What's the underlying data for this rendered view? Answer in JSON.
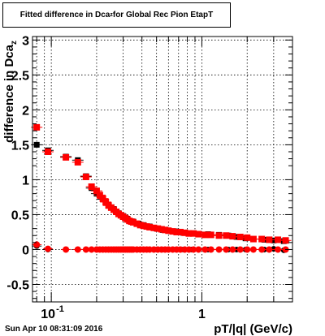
{
  "title": {
    "pre": "Fitted difference in Dca",
    "sub": "z",
    "post": " for Global Rec Pion EtapT"
  },
  "footer": {
    "date": "Sun Apr 10 08:31:09 2016"
  },
  "colors": {
    "series_red": "#ff0000",
    "series_black": "#000000",
    "grid": "#000000"
  },
  "chart_data": {
    "type": "scatter",
    "xlabel": "pT/|q| (GeV/c)",
    "ylabel": "difference in Dca",
    "ylabel_sub": "z",
    "xscale": "log",
    "xlim": [
      0.075,
      4.0
    ],
    "ylim": [
      -0.75,
      3.05
    ],
    "grid": true,
    "y_ticks": [
      -0.5,
      0,
      0.5,
      1,
      1.5,
      2,
      2.5,
      3
    ],
    "y_tick_labels": [
      "-0.5",
      "0",
      "0.5",
      "1",
      "1.5",
      "2",
      "2.5",
      "3"
    ],
    "x_major_ticks": [
      0.1,
      1
    ],
    "x_major_labels": [
      "10",
      "1"
    ],
    "x_major_label_sup": [
      "-1",
      ""
    ],
    "x_minor_ticks": [
      0.08,
      0.09,
      0.2,
      0.3,
      0.4,
      0.5,
      0.6,
      0.7,
      0.8,
      0.9,
      2,
      3,
      4
    ],
    "series": [
      {
        "color": "#000000",
        "x": [
          0.08,
          0.095,
          0.125,
          0.15,
          0.17,
          0.185,
          0.2,
          0.22,
          0.24,
          0.26,
          0.28,
          0.3,
          0.32,
          0.35,
          0.38,
          0.41,
          0.45,
          0.5,
          0.55,
          0.6,
          0.67,
          0.75,
          0.85,
          0.95,
          1.1,
          1.3,
          1.5,
          1.7,
          1.95,
          2.2,
          2.6,
          3.0,
          3.5
        ],
        "y": [
          1.5,
          1.42,
          1.33,
          1.28,
          1.05,
          0.88,
          0.8,
          0.72,
          0.64,
          0.58,
          0.52,
          0.48,
          0.44,
          0.4,
          0.37,
          0.35,
          0.33,
          0.3,
          0.28,
          0.27,
          0.26,
          0.24,
          0.23,
          0.22,
          0.22,
          0.21,
          0.2,
          0.18,
          0.16,
          0.15,
          0.14,
          0.13,
          0.12
        ],
        "y_low": [
          0.05,
          0.0,
          0.0,
          0.0,
          0.0,
          0.0,
          0.0,
          0.0,
          0.0,
          0.0,
          0.0,
          0.0,
          0.0,
          0.0,
          0.0,
          0.0,
          0.0,
          0.0,
          0.0,
          0.0,
          0.0,
          0.0,
          0.0,
          0.0,
          0.0,
          0.0,
          0.0,
          0.0,
          0.0,
          0.0,
          0.0,
          0.01,
          -0.01
        ]
      },
      {
        "color": "#ff0000",
        "x": [
          0.08,
          0.095,
          0.125,
          0.15,
          0.17,
          0.185,
          0.2,
          0.21,
          0.22,
          0.23,
          0.24,
          0.25,
          0.26,
          0.27,
          0.28,
          0.29,
          0.3,
          0.31,
          0.32,
          0.33,
          0.34,
          0.35,
          0.37,
          0.39,
          0.41,
          0.43,
          0.45,
          0.48,
          0.51,
          0.54,
          0.57,
          0.6,
          0.64,
          0.68,
          0.72,
          0.77,
          0.82,
          0.88,
          0.95,
          1.05,
          1.15,
          1.3,
          1.45,
          1.6,
          1.8,
          2.0,
          2.2,
          2.5,
          2.8,
          3.2,
          3.6
        ],
        "y": [
          1.75,
          1.4,
          1.32,
          1.25,
          1.04,
          0.9,
          0.84,
          0.78,
          0.73,
          0.68,
          0.63,
          0.6,
          0.57,
          0.54,
          0.51,
          0.49,
          0.47,
          0.45,
          0.43,
          0.41,
          0.4,
          0.39,
          0.37,
          0.35,
          0.34,
          0.33,
          0.32,
          0.31,
          0.3,
          0.29,
          0.28,
          0.27,
          0.26,
          0.25,
          0.25,
          0.24,
          0.23,
          0.23,
          0.22,
          0.21,
          0.21,
          0.2,
          0.2,
          0.19,
          0.18,
          0.17,
          0.15,
          0.15,
          0.14,
          0.14,
          0.13
        ],
        "y_low": [
          0.07,
          0.01,
          0.0,
          0.0,
          0.0,
          0.0,
          0.0,
          0.0,
          0.0,
          0.0,
          0.0,
          0.0,
          0.0,
          0.0,
          0.0,
          0.0,
          0.0,
          0.0,
          0.0,
          0.0,
          0.0,
          0.0,
          0.0,
          0.0,
          0.0,
          0.0,
          0.0,
          0.0,
          0.0,
          0.0,
          0.0,
          0.0,
          0.0,
          0.0,
          0.0,
          0.0,
          0.0,
          0.0,
          0.0,
          0.0,
          0.0,
          0.0,
          0.0,
          0.0,
          0.0,
          0.0,
          0.0,
          0.0,
          0.0,
          0.0,
          0.0
        ]
      }
    ]
  }
}
